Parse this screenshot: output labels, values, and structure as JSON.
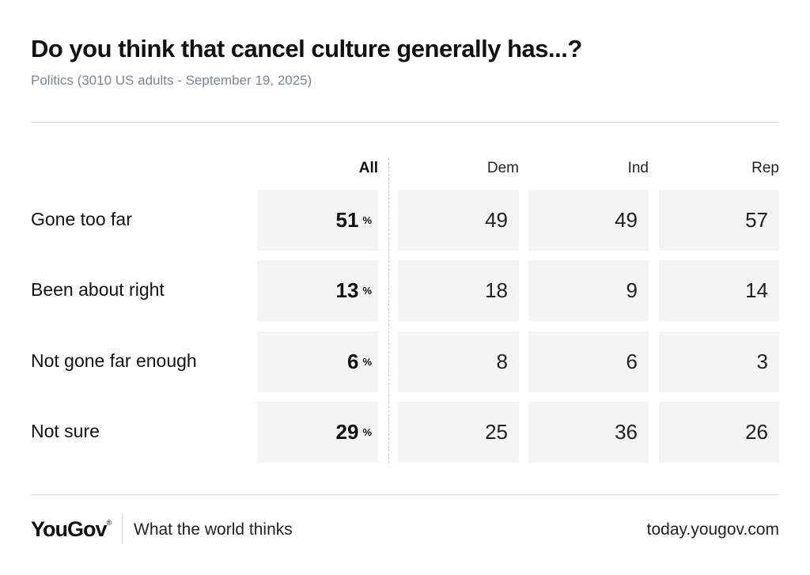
{
  "title": "Do you think that cancel culture generally has...?",
  "subtitle": "Politics (3010 US adults - September 19, 2025)",
  "chart_data": {
    "type": "table",
    "title": "Do you think that cancel culture generally has...?",
    "subtitle": "Politics (3010 US adults - September 19, 2025)",
    "columns": [
      "All",
      "Dem",
      "Ind",
      "Rep"
    ],
    "percent_sign": "%",
    "rows": [
      {
        "label": "Gone too far",
        "values": [
          51,
          49,
          49,
          57
        ]
      },
      {
        "label": "Been about right",
        "values": [
          13,
          18,
          9,
          14
        ]
      },
      {
        "label": "Not gone far enough",
        "values": [
          6,
          8,
          6,
          3
        ]
      },
      {
        "label": "Not sure",
        "values": [
          29,
          25,
          36,
          26
        ]
      }
    ]
  },
  "footer": {
    "logo": "YouGov",
    "logo_mark": "®",
    "tagline": "What the world thinks",
    "site": "today.yougov.com"
  },
  "colors": {
    "cell_background": "#f4f4f4",
    "subtitle": "#7b8494",
    "rule": "#dedede"
  }
}
